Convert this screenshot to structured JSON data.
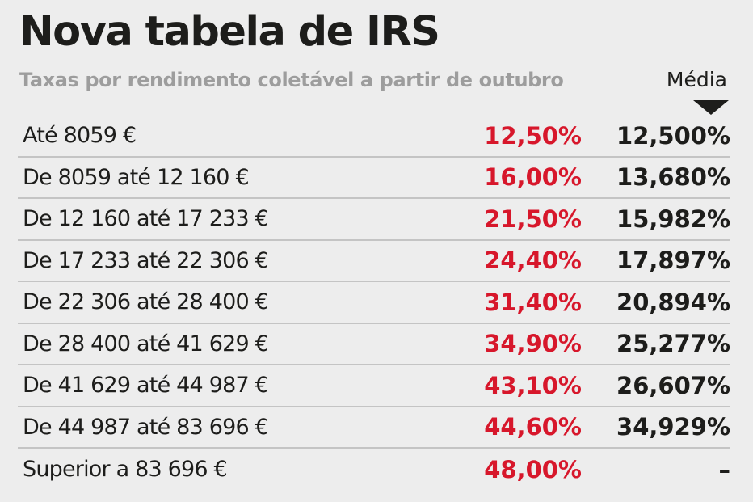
{
  "header": {
    "title": "Nova tabela de IRS",
    "subtitle": "Taxas por rendimento coletável a partir de outubro",
    "media_label": "Média"
  },
  "chart_data": {
    "type": "table",
    "title": "Nova tabela de IRS",
    "subtitle": "Taxas por rendimento coletável a partir de outubro",
    "columns": [
      "",
      "",
      "Média"
    ],
    "rows": [
      {
        "bracket": "Até 8059 €",
        "rate": "12,50%",
        "average": "12,500%"
      },
      {
        "bracket": "De 8059 até 12 160 €",
        "rate": "16,00%",
        "average": "13,680%"
      },
      {
        "bracket": "De 12 160 até 17 233 €",
        "rate": "21,50%",
        "average": "15,982%"
      },
      {
        "bracket": "De 17 233 até 22 306 €",
        "rate": "24,40%",
        "average": "17,897%"
      },
      {
        "bracket": "De 22 306 até 28 400 €",
        "rate": "31,40%",
        "average": "20,894%"
      },
      {
        "bracket": "De 28 400 até 41 629 €",
        "rate": "34,90%",
        "average": "25,277%"
      },
      {
        "bracket": "De 41 629 até 44 987 €",
        "rate": "43,10%",
        "average": "26,607%"
      },
      {
        "bracket": "De 44 987 até 83 696 €",
        "rate": "44,60%",
        "average": "34,929%"
      },
      {
        "bracket": "Superior a 83 696 €",
        "rate": "48,00%",
        "average": "–"
      }
    ],
    "colors": {
      "rate": "#d7172b",
      "average": "#1d1d1b",
      "subtitle": "#9d9d9d",
      "background": "#ededed",
      "divider": "#c4c4c4"
    }
  }
}
